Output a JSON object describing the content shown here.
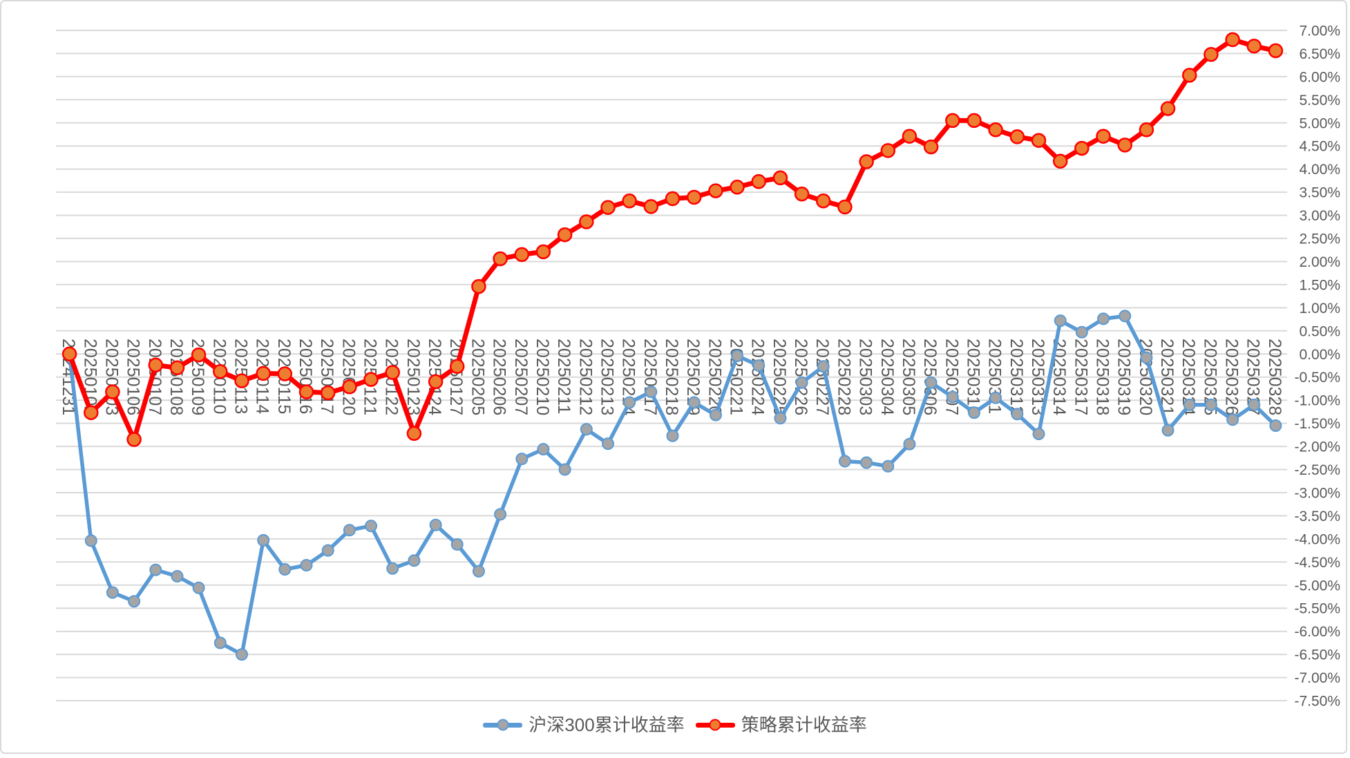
{
  "chart_data": {
    "type": "line",
    "title": "",
    "xlabel": "",
    "ylabel": "",
    "categories": [
      "20241231",
      "20250102",
      "20250103",
      "20250106",
      "20250107",
      "20250108",
      "20250109",
      "20250110",
      "20250113",
      "20250114",
      "20250115",
      "20250116",
      "20250117",
      "20250120",
      "20250121",
      "20250122",
      "20250123",
      "20250124",
      "20250127",
      "20250205",
      "20250206",
      "20250207",
      "20250210",
      "20250211",
      "20250212",
      "20250213",
      "20250214",
      "20250217",
      "20250218",
      "20250219",
      "20250220",
      "20250221",
      "20250224",
      "20250225",
      "20250226",
      "20250227",
      "20250228",
      "20250303",
      "20250304",
      "20250305",
      "20250306",
      "20250307",
      "20250310",
      "20250311",
      "20250312",
      "20250313",
      "20250314",
      "20250317",
      "20250318",
      "20250319",
      "20250320",
      "20250321",
      "20250324",
      "20250325",
      "20250326",
      "20250327",
      "20250328"
    ],
    "series": [
      {
        "name": "沪深300累计收益率",
        "line_color": "#5B9BD5",
        "marker_color": "#A5A5A5",
        "values": [
          0.0,
          -4.04,
          -5.16,
          -5.35,
          -4.67,
          -4.81,
          -5.06,
          -6.25,
          -6.5,
          -4.03,
          -4.66,
          -4.57,
          -4.25,
          -3.81,
          -3.72,
          -4.64,
          -4.47,
          -3.7,
          -4.12,
          -4.7,
          -3.47,
          -2.27,
          -2.06,
          -2.5,
          -1.63,
          -1.94,
          -1.05,
          -0.82,
          -1.77,
          -1.05,
          -1.32,
          -0.04,
          -0.25,
          -1.39,
          -0.62,
          -0.27,
          -2.32,
          -2.35,
          -2.43,
          -1.95,
          -0.62,
          -0.93,
          -1.27,
          -0.95,
          -1.3,
          -1.73,
          0.72,
          0.47,
          0.76,
          0.82,
          -0.08,
          -1.65,
          -1.1,
          -1.1,
          -1.42,
          -1.1,
          -1.55
        ]
      },
      {
        "name": "策略累计收益率",
        "line_color": "#FF0000",
        "marker_color": "#ED7D31",
        "values": [
          0.0,
          -1.27,
          -0.82,
          -1.85,
          -0.24,
          -0.3,
          -0.02,
          -0.38,
          -0.58,
          -0.42,
          -0.43,
          -0.82,
          -0.84,
          -0.71,
          -0.55,
          -0.4,
          -1.72,
          -0.6,
          -0.27,
          1.46,
          2.06,
          2.15,
          2.21,
          2.58,
          2.86,
          3.17,
          3.31,
          3.19,
          3.36,
          3.39,
          3.53,
          3.61,
          3.73,
          3.81,
          3.46,
          3.31,
          3.18,
          4.16,
          4.4,
          4.71,
          4.48,
          5.05,
          5.05,
          4.85,
          4.7,
          4.62,
          4.17,
          4.45,
          4.71,
          4.52,
          4.85,
          5.31,
          6.03,
          6.48,
          6.8,
          6.66,
          6.56
        ]
      }
    ],
    "ylim": [
      -7.5,
      7.0
    ],
    "ytick_step": 0.5,
    "ytick_suffix": "%",
    "ytick_decimals": 2,
    "ytick_labels_side": "right",
    "xtick_rotation_deg": 90,
    "grid": true,
    "legend_position": "bottom"
  },
  "styles": {
    "background": "#FFFFFF",
    "frame_border_color": "#D9D9D9",
    "grid_color": "#D9D9D9",
    "tick_text_color": "#595959",
    "legend_text_color": "#595959"
  }
}
